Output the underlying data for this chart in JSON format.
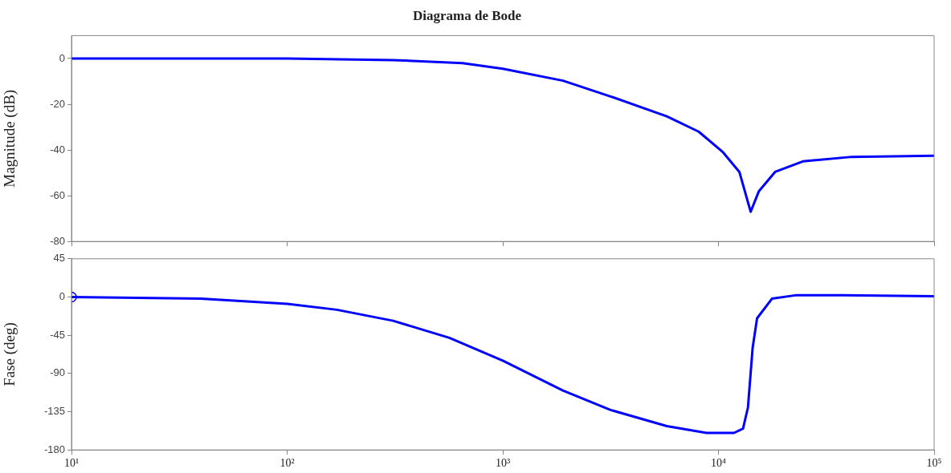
{
  "chart_data": [
    {
      "type": "line",
      "title": "Diagrama de Bode",
      "ylabel": "Magnitude (dB)",
      "log": "x",
      "grid": false,
      "legend": false,
      "tick_labels": "y",
      "marker": "none",
      "xlim": [
        10,
        100000
      ],
      "xticks": [
        10,
        100,
        1000,
        10000,
        100000
      ],
      "ylim": [
        -80,
        10
      ],
      "yticks": [
        -80,
        -60,
        -40,
        -20,
        0
      ],
      "series": [
        {
          "color": "#0000ff",
          "x": [
            10,
            100,
            310,
            650,
            1000,
            1900,
            3160,
            5760,
            8100,
            10500,
            12500,
            14100,
            15400,
            18300,
            24600,
            41600,
            100000
          ],
          "values": [
            0,
            0,
            -0.7,
            -2,
            -4.5,
            -9.7,
            -16.6,
            -25.3,
            -32,
            -41,
            -49.6,
            -67,
            -58,
            -49.6,
            -45,
            -43,
            -42.5
          ]
        }
      ]
    },
    {
      "type": "line",
      "xlabel": null,
      "ylabel": "Fase (deg)",
      "log": "x",
      "grid": false,
      "legend": false,
      "marker": "none",
      "xlim": [
        10,
        100000
      ],
      "xticks": [
        {
          "value": 10,
          "label": "10¹"
        },
        {
          "value": 100,
          "label": "10²"
        },
        {
          "value": 1000,
          "label": "10³"
        },
        {
          "value": 10000,
          "label": "10⁴"
        },
        {
          "value": 100000,
          "label": "10⁵"
        }
      ],
      "ylim": [
        -180,
        45
      ],
      "yticks": [
        -180,
        -135,
        -90,
        -45,
        0,
        45
      ],
      "series": [
        {
          "color": "#0000ff",
          "x": [
            10,
            40,
            100,
            170,
            310,
            565,
            1000,
            1900,
            3160,
            5760,
            8800,
            11800,
            13000,
            13700,
            14400,
            15100,
            17700,
            22700,
            37500,
            100000
          ],
          "values": [
            0,
            -2,
            -8,
            -15,
            -28,
            -48,
            -75,
            -110,
            -133,
            -152,
            -160,
            -160,
            -155,
            -130,
            -60,
            -25,
            -2,
            2,
            2,
            1
          ]
        },
        {
          "type": "scatter",
          "marker": "circle",
          "color": "#0000ff",
          "x": [
            10
          ],
          "values": [
            0
          ]
        }
      ]
    }
  ]
}
